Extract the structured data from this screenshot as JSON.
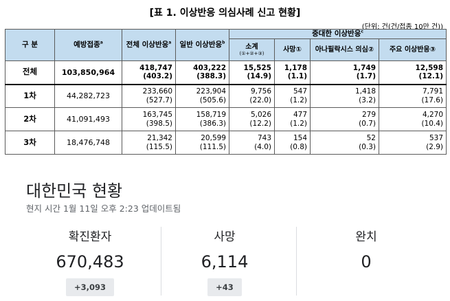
{
  "table": {
    "title": "[표 1. 이상반응 의심사례 신고 현황]",
    "unit": "(단위: 건(건/접종 10만 건))",
    "headers": {
      "category": "구 분",
      "vaccinations": "예방접종",
      "total_ae": "전체 이상반응",
      "general_ae": "일반 이상반응",
      "serious_ae": "중대한 이상반응",
      "subtotal": "소계",
      "subtotal_note": "(①+②+③)",
      "death": "사망①",
      "anaphylaxis": "아나필락시스 의심②",
      "major_ae": "주요 이상반응③"
    },
    "rows": [
      {
        "label": "전체",
        "vaccinations": "103,850,964",
        "total": "418,747",
        "total_rate": "(403.2)",
        "general": "403,222",
        "general_rate": "(388.3)",
        "subtotal": "15,525",
        "subtotal_rate": "(14.9)",
        "death": "1,178",
        "death_rate": "(1.1)",
        "anaphylaxis": "1,749",
        "anaphylaxis_rate": "(1.7)",
        "major": "12,598",
        "major_rate": "(12.1)"
      },
      {
        "label": "1차",
        "vaccinations": "44,282,723",
        "total": "233,660",
        "total_rate": "(527.7)",
        "general": "223,904",
        "general_rate": "(505.6)",
        "subtotal": "9,756",
        "subtotal_rate": "(22.0)",
        "death": "547",
        "death_rate": "(1.2)",
        "anaphylaxis": "1,418",
        "anaphylaxis_rate": "(3.2)",
        "major": "7,791",
        "major_rate": "(17.6)"
      },
      {
        "label": "2차",
        "vaccinations": "41,091,493",
        "total": "163,745",
        "total_rate": "(398.5)",
        "general": "158,719",
        "general_rate": "(386.3)",
        "subtotal": "5,026",
        "subtotal_rate": "(12.2)",
        "death": "477",
        "death_rate": "(1.2)",
        "anaphylaxis": "279",
        "anaphylaxis_rate": "(0.7)",
        "major": "4,270",
        "major_rate": "(10.4)"
      },
      {
        "label": "3차",
        "vaccinations": "18,476,748",
        "total": "21,342",
        "total_rate": "(115.5)",
        "general": "20,599",
        "general_rate": "(111.5)",
        "subtotal": "743",
        "subtotal_rate": "(4.0)",
        "death": "154",
        "death_rate": "(0.8)",
        "anaphylaxis": "52",
        "anaphylaxis_rate": "(0.3)",
        "major": "537",
        "major_rate": "(2.9)"
      }
    ]
  },
  "widget": {
    "title": "대한민국 현황",
    "updated": "현지 시간 1월 11일 오후 2:23 업데이트됨",
    "stats": [
      {
        "label": "확진환자",
        "value": "670,483",
        "change": "+3,093"
      },
      {
        "label": "사망",
        "value": "6,114",
        "change": "+43"
      },
      {
        "label": "완치",
        "value": "0",
        "change": ""
      }
    ]
  },
  "colors": {
    "header_bg": "#c3dcef",
    "widget_text": "#202124",
    "widget_sub": "#5f6368",
    "chip_bg": "#e8eaed"
  }
}
